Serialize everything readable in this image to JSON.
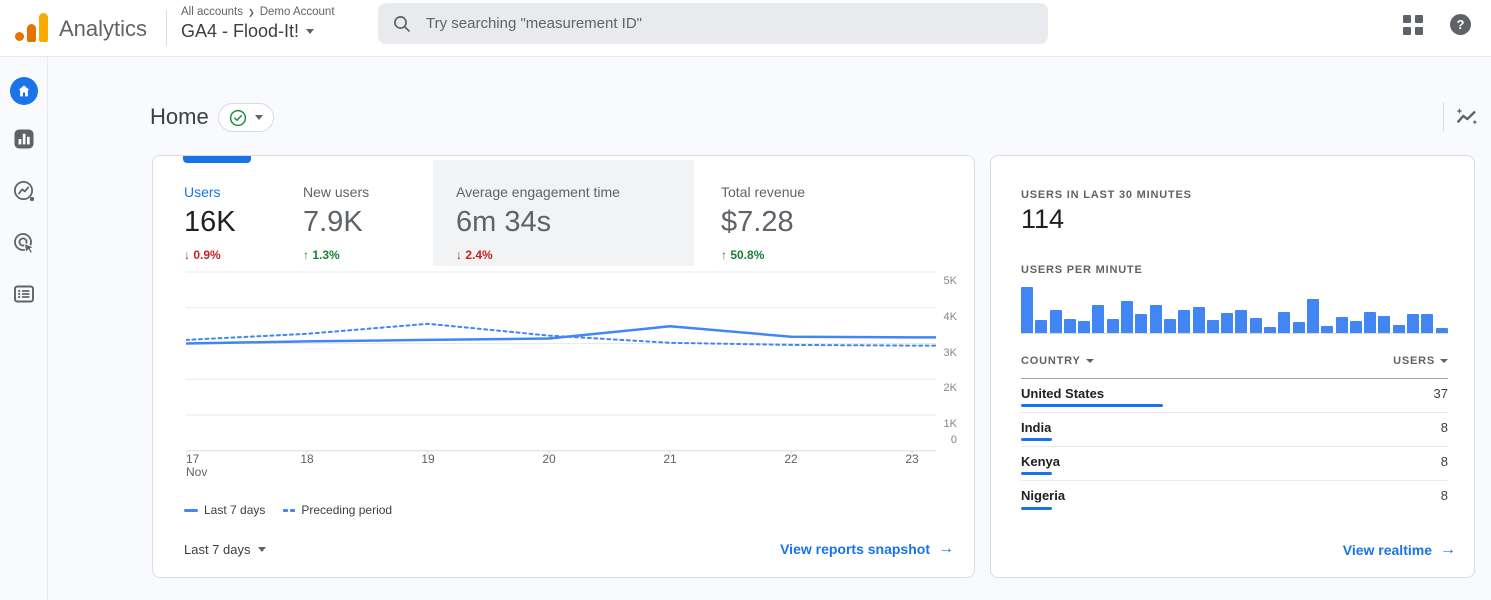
{
  "header": {
    "product": "Analytics",
    "breadcrumb": {
      "root": "All accounts",
      "separator": "❯",
      "account": "Demo Account"
    },
    "property_selector": "GA4 - Flood-It!",
    "search": {
      "placeholder": "Try searching \"measurement ID\""
    },
    "help_glyph": "?"
  },
  "sidebar": {
    "items": [
      "home",
      "reports",
      "explore",
      "advertising",
      "library"
    ],
    "active": "home"
  },
  "page": {
    "title": "Home"
  },
  "overview_card": {
    "metrics": [
      {
        "label": "Users",
        "value": "16K",
        "change": "0.9%",
        "trend": "down",
        "selected": true
      },
      {
        "label": "New users",
        "value": "7.9K",
        "change": "1.3%",
        "trend": "up",
        "selected": false
      },
      {
        "label": "Average engagement time",
        "value": "6m 34s",
        "change": "2.4%",
        "trend": "down",
        "selected": false,
        "highlighted": true
      },
      {
        "label": "Total revenue",
        "value": "$7.28",
        "change": "50.8%",
        "trend": "up",
        "selected": false
      }
    ],
    "date_range": "Last 7 days",
    "link": {
      "label": "View reports snapshot",
      "arrow": "→"
    }
  },
  "realtime_card": {
    "users_30min_label": "USERS IN LAST 30 MINUTES",
    "users_30min_value": "114",
    "per_minute_label": "USERS PER MINUTE",
    "table": {
      "columns": [
        "COUNTRY",
        "USERS"
      ],
      "rows": [
        {
          "country": "United States",
          "users": 37
        },
        {
          "country": "India",
          "users": 8
        },
        {
          "country": "Kenya",
          "users": 8
        },
        {
          "country": "Nigeria",
          "users": 8
        }
      ]
    },
    "link": {
      "label": "View realtime",
      "arrow": "→"
    }
  },
  "chart_data": [
    {
      "id": "users-trend",
      "type": "line",
      "x_labels": [
        [
          "17",
          "Nov"
        ],
        [
          "18"
        ],
        [
          "19"
        ],
        [
          "20"
        ],
        [
          "21"
        ],
        [
          "22"
        ],
        [
          "23"
        ]
      ],
      "series": [
        {
          "name": "Last 7 days",
          "style": "solid",
          "values": [
            3000,
            3060,
            3100,
            3140,
            3480,
            3190,
            3170
          ]
        },
        {
          "name": "Preceding period",
          "style": "dashed",
          "values": [
            3100,
            3270,
            3550,
            3220,
            3020,
            2960,
            2940
          ]
        }
      ],
      "ylim": [
        0,
        5000
      ],
      "yticks": [
        {
          "v": 5000,
          "label": "5K"
        },
        {
          "v": 4000,
          "label": "4K"
        },
        {
          "v": 3000,
          "label": "3K"
        },
        {
          "v": 2000,
          "label": "2K"
        },
        {
          "v": 1000,
          "label": "1K"
        },
        {
          "v": 0,
          "label": "0"
        }
      ],
      "grid": true,
      "legend_position": "bottom"
    },
    {
      "id": "users-per-minute",
      "type": "bar",
      "title": "USERS PER MINUTE",
      "note": "unlabeled minute bars, heights relative to max=100",
      "values_relative": [
        100,
        29,
        49,
        31,
        25,
        60,
        30,
        70,
        41,
        61,
        31,
        51,
        57,
        29,
        43,
        49,
        33,
        12,
        45,
        23,
        74,
        15,
        34,
        27,
        45,
        37,
        18,
        41,
        41,
        11
      ]
    }
  ],
  "colors": {
    "accent": "#1a73e8",
    "chart_blue": "#4285f4",
    "negative": "#c5221f",
    "positive": "#188038",
    "logo_amber": "#f9ab00",
    "logo_orange": "#e37400"
  }
}
